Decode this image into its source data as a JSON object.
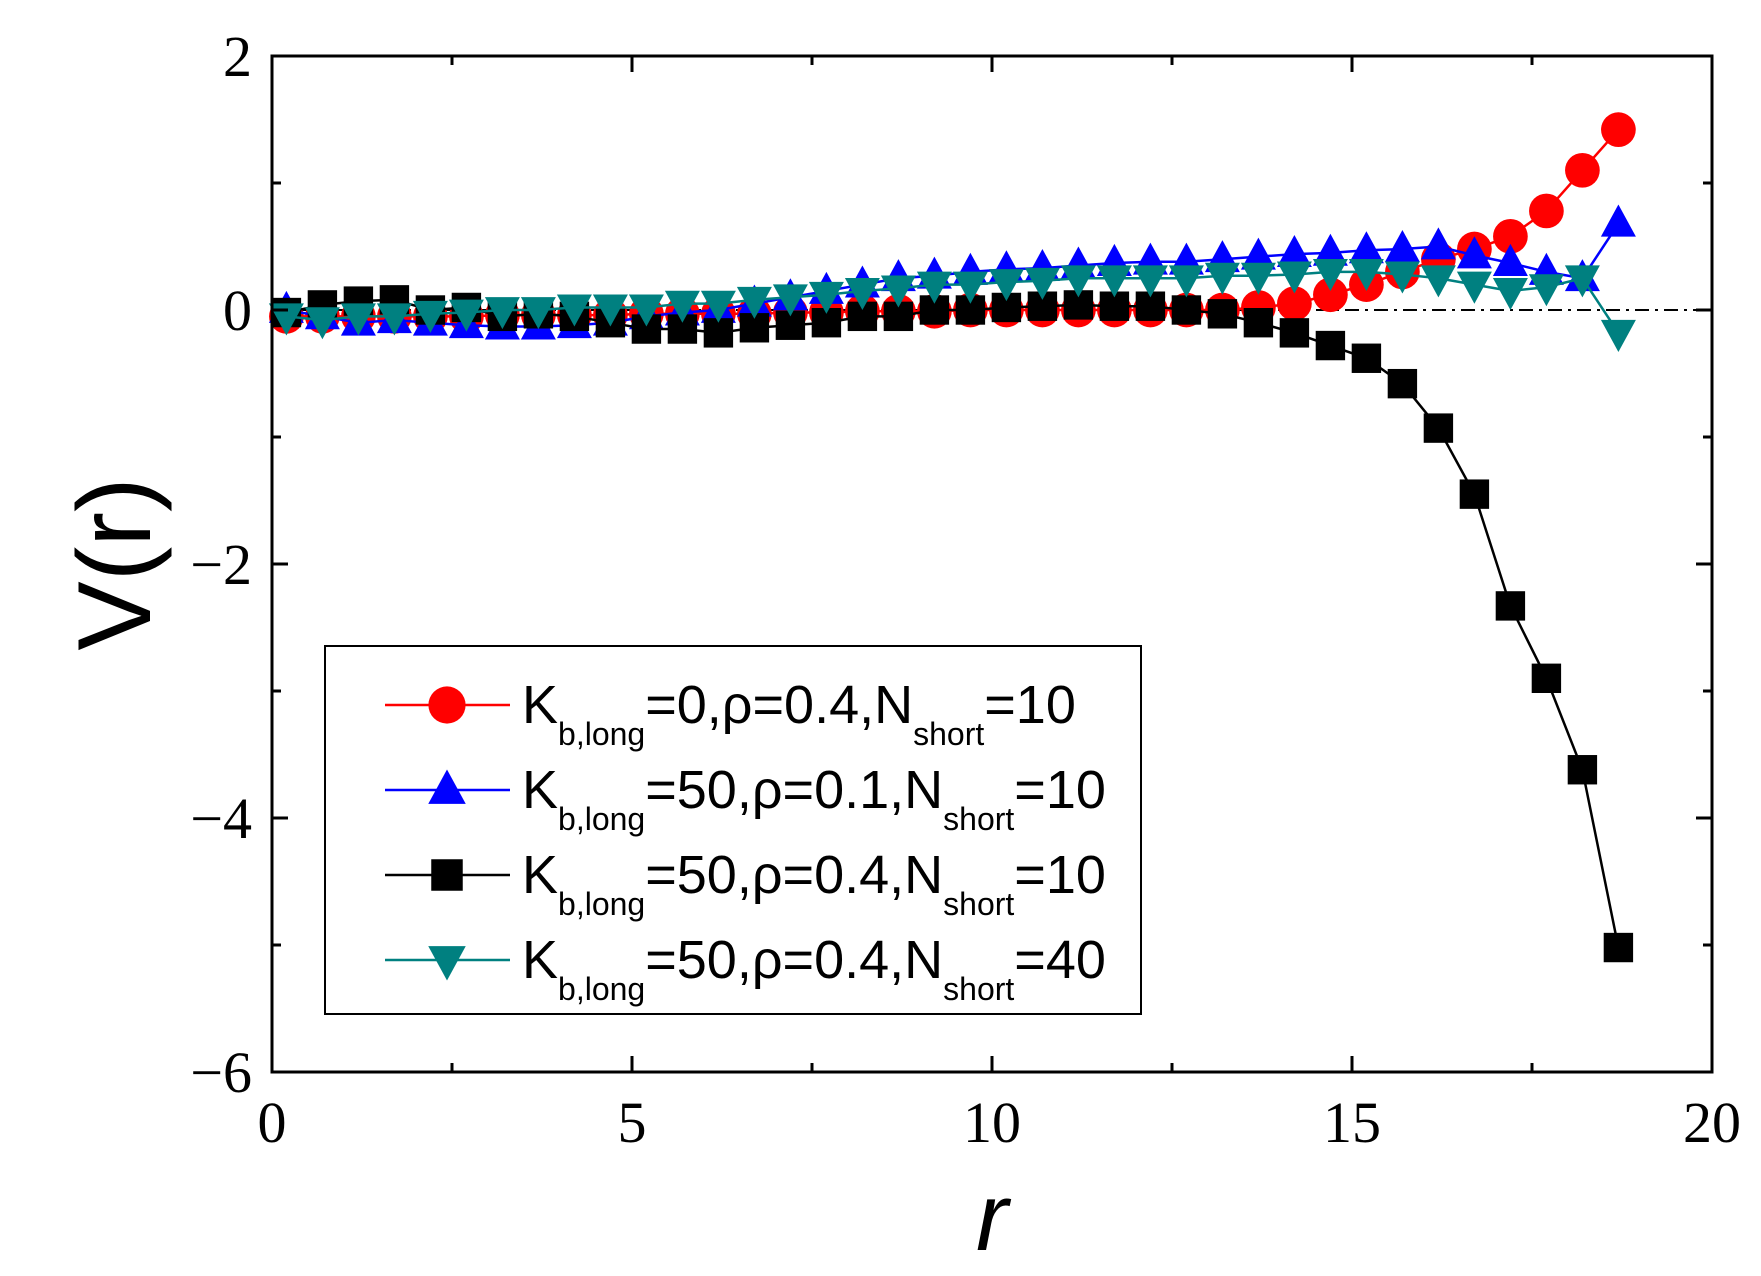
{
  "chart_data": {
    "type": "line",
    "title": "",
    "xlabel": "r",
    "ylabel": "V(r)",
    "xlim": [
      0,
      20
    ],
    "ylim": [
      -6,
      2
    ],
    "x_ticks": [
      0,
      5,
      10,
      15,
      20
    ],
    "y_ticks": [
      -6,
      -4,
      -2,
      0,
      2
    ],
    "x_tick_labels": [
      "0",
      "5",
      "10",
      "15",
      "20"
    ],
    "y_tick_labels": [
      "−6",
      "−4",
      "−2",
      "0",
      "2"
    ],
    "reference_line": {
      "y": 0,
      "style": "dash-dot"
    },
    "legend_position": "lower-left",
    "series": [
      {
        "name": "K_b,long=0, ρ=0.4, N_short=10",
        "legend": {
          "k": "K",
          "k_sub": "b,long",
          "mid": "=0,ρ=0.4,N",
          "n_sub": "short",
          "end": "=10"
        },
        "color": "#ff0000",
        "marker": "circle",
        "x": [
          0.2,
          0.7,
          1.2,
          1.7,
          2.2,
          2.7,
          3.2,
          3.7,
          4.2,
          4.7,
          5.2,
          5.7,
          6.2,
          6.7,
          7.2,
          7.7,
          8.2,
          8.7,
          9.2,
          9.7,
          10.2,
          10.7,
          11.2,
          11.7,
          12.2,
          12.7,
          13.2,
          13.7,
          14.2,
          14.7,
          15.2,
          15.7,
          16.2,
          16.7,
          17.2,
          17.7,
          18.2,
          18.7
        ],
        "y": [
          -0.05,
          -0.05,
          -0.05,
          -0.05,
          -0.05,
          -0.05,
          -0.04,
          -0.04,
          -0.04,
          -0.04,
          -0.03,
          -0.03,
          -0.03,
          -0.03,
          -0.02,
          -0.02,
          -0.01,
          -0.01,
          -0.01,
          0.0,
          0.0,
          0.0,
          0.0,
          0.0,
          0.0,
          0.0,
          0.0,
          0.02,
          0.05,
          0.12,
          0.2,
          0.3,
          0.4,
          0.48,
          0.58,
          0.78,
          1.1,
          1.42
        ]
      },
      {
        "name": "K_b,long=50, ρ=0.1, N_short=10",
        "legend": {
          "k": "K",
          "k_sub": "b,long",
          "mid": "=50,ρ=0.1,N",
          "n_sub": "short",
          "end": "=10"
        },
        "color": "#0000ff",
        "marker": "triangle-up",
        "x": [
          0.2,
          0.7,
          1.2,
          1.7,
          2.2,
          2.7,
          3.2,
          3.7,
          4.2,
          4.7,
          5.2,
          5.7,
          6.2,
          6.7,
          7.2,
          7.7,
          8.2,
          8.7,
          9.2,
          9.7,
          10.2,
          10.7,
          11.2,
          11.7,
          12.2,
          12.7,
          13.2,
          13.7,
          14.2,
          14.7,
          15.2,
          15.7,
          16.2,
          16.7,
          17.2,
          17.7,
          18.2,
          18.7
        ],
        "y": [
          0.0,
          -0.05,
          -0.1,
          -0.08,
          -0.1,
          -0.12,
          -0.13,
          -0.13,
          -0.12,
          -0.1,
          -0.05,
          -0.02,
          0.0,
          0.05,
          0.1,
          0.15,
          0.2,
          0.25,
          0.27,
          0.3,
          0.32,
          0.33,
          0.35,
          0.37,
          0.38,
          0.38,
          0.4,
          0.42,
          0.44,
          0.45,
          0.47,
          0.48,
          0.5,
          0.43,
          0.37,
          0.3,
          0.25,
          0.68
        ]
      },
      {
        "name": "K_b,long=50, ρ=0.4, N_short=10",
        "legend": {
          "k": "K",
          "k_sub": "b,long",
          "mid": "=50,ρ=0.4,N",
          "n_sub": "short",
          "end": "=10"
        },
        "color": "#000000",
        "marker": "square",
        "x": [
          0.2,
          0.7,
          1.2,
          1.7,
          2.2,
          2.7,
          3.2,
          3.7,
          4.2,
          4.7,
          5.2,
          5.7,
          6.2,
          6.7,
          7.2,
          7.7,
          8.2,
          8.7,
          9.2,
          9.7,
          10.2,
          10.7,
          11.2,
          11.7,
          12.2,
          12.7,
          13.2,
          13.7,
          14.2,
          14.7,
          15.2,
          15.7,
          16.2,
          16.7,
          17.2,
          17.7,
          18.2,
          18.7
        ],
        "y": [
          -0.02,
          0.04,
          0.07,
          0.08,
          0.0,
          0.02,
          -0.05,
          -0.03,
          -0.05,
          -0.1,
          -0.15,
          -0.15,
          -0.18,
          -0.14,
          -0.12,
          -0.1,
          -0.05,
          -0.05,
          0.0,
          0.0,
          0.02,
          0.03,
          0.04,
          0.03,
          0.03,
          0.0,
          -0.03,
          -0.1,
          -0.18,
          -0.28,
          -0.38,
          -0.58,
          -0.93,
          -1.45,
          -2.33,
          -2.9,
          -3.62,
          -5.02
        ]
      },
      {
        "name": "K_b,long=50, ρ=0.4, N_short=40",
        "legend": {
          "k": "K",
          "k_sub": "b,long",
          "mid": "=50,ρ=0.4,N",
          "n_sub": "short",
          "end": "=40"
        },
        "color": "#008080",
        "marker": "triangle-down",
        "x": [
          0.2,
          0.7,
          1.2,
          1.7,
          2.2,
          2.7,
          3.2,
          3.7,
          4.2,
          4.7,
          5.2,
          5.7,
          6.2,
          6.7,
          7.2,
          7.7,
          8.2,
          8.7,
          9.2,
          9.7,
          10.2,
          10.7,
          11.2,
          11.7,
          12.2,
          12.7,
          13.2,
          13.7,
          14.2,
          14.7,
          15.2,
          15.7,
          16.2,
          16.7,
          17.2,
          17.7,
          18.2,
          18.7
        ],
        "y": [
          -0.05,
          -0.08,
          -0.05,
          -0.05,
          -0.03,
          -0.02,
          0.0,
          0.0,
          0.02,
          0.02,
          0.02,
          0.05,
          0.05,
          0.08,
          0.1,
          0.12,
          0.15,
          0.17,
          0.2,
          0.2,
          0.22,
          0.23,
          0.25,
          0.25,
          0.25,
          0.25,
          0.27,
          0.27,
          0.28,
          0.3,
          0.3,
          0.28,
          0.25,
          0.2,
          0.15,
          0.18,
          0.25,
          -0.18
        ]
      }
    ]
  }
}
